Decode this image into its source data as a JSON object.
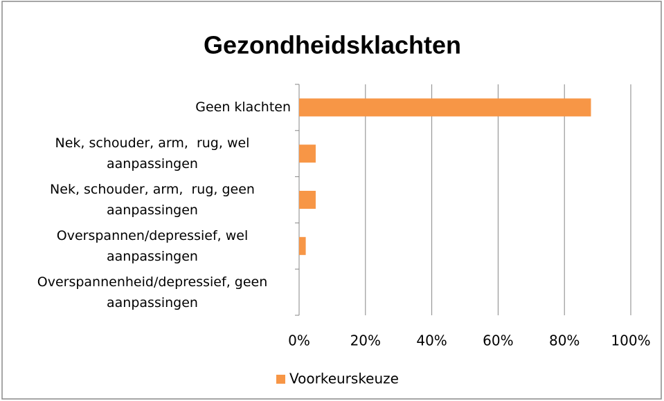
{
  "chart_data": {
    "type": "bar",
    "orientation": "horizontal",
    "title": "Gezondheidsklachten",
    "categories": [
      "Geen klachten",
      "Nek, schouder, arm,  rug, wel aanpassingen",
      "Nek, schouder, arm,  rug, geen aanpassingen",
      "Overspannen/depressief, wel aanpassingen",
      "Overspannenheid/depressief, geen aanpassingen"
    ],
    "series": [
      {
        "name": "Voorkeurskeuze",
        "color": "#f79646",
        "values": [
          88,
          5,
          5,
          2,
          0
        ]
      }
    ],
    "xlim": [
      0,
      100
    ],
    "xticks": [
      {
        "value": 0,
        "label": "0%"
      },
      {
        "value": 20,
        "label": "20%"
      },
      {
        "value": 40,
        "label": "40%"
      },
      {
        "value": 60,
        "label": "60%"
      },
      {
        "value": 80,
        "label": "80%"
      },
      {
        "value": 100,
        "label": "100%"
      }
    ],
    "grid": true,
    "legend": "bottom"
  }
}
